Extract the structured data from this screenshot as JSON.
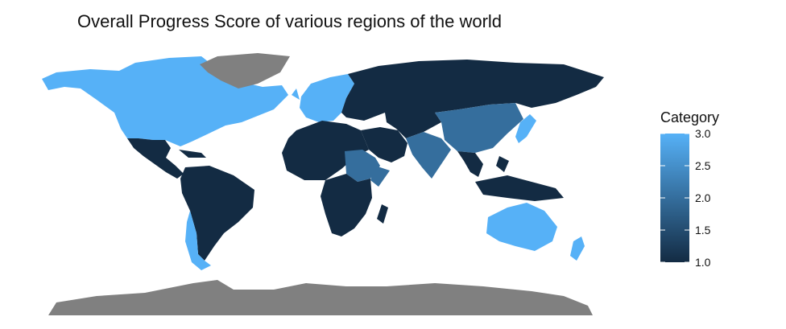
{
  "title": "Overall Progress Score of various regions of the world",
  "legend": {
    "title": "Category",
    "min": 1.0,
    "max": 3.0,
    "ticks": [
      "3.0",
      "2.5",
      "2.0",
      "1.5",
      "1.0"
    ],
    "color_low": "#132b43",
    "color_high": "#56b1f7"
  },
  "colors": {
    "no_data": "#808080"
  },
  "regions": [
    {
      "name": "North America",
      "value": 3.0
    },
    {
      "name": "Greenland",
      "value": null
    },
    {
      "name": "Central America & Caribbean",
      "value": 1.0
    },
    {
      "name": "South America",
      "value": 1.0
    },
    {
      "name": "Southern Cone",
      "value": 3.0
    },
    {
      "name": "Western Europe",
      "value": 3.0
    },
    {
      "name": "Eastern Europe & North Asia",
      "value": 1.0
    },
    {
      "name": "North & West Africa",
      "value": 1.0
    },
    {
      "name": "East Africa",
      "value": 2.0
    },
    {
      "name": "Sub-Saharan Africa",
      "value": 1.0
    },
    {
      "name": "Middle East",
      "value": 1.0
    },
    {
      "name": "Central Asia",
      "value": 1.0
    },
    {
      "name": "South Asia",
      "value": 2.0
    },
    {
      "name": "East Asia",
      "value": 2.0
    },
    {
      "name": "Japan",
      "value": 3.0
    },
    {
      "name": "Southeast Asia",
      "value": 1.0
    },
    {
      "name": "Australia & New Zealand",
      "value": 3.0
    },
    {
      "name": "Antarctica",
      "value": null
    }
  ]
}
